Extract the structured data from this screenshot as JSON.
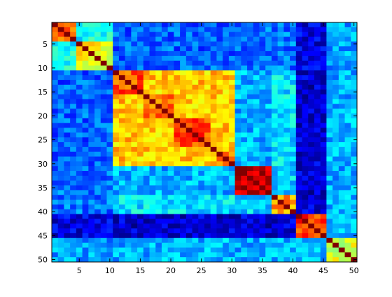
{
  "chart_data": {
    "type": "heatmap",
    "title": "",
    "xlabel": "",
    "ylabel": "",
    "rows": 50,
    "cols": 50,
    "x_ticks": [
      5,
      10,
      15,
      20,
      25,
      30,
      35,
      40,
      45,
      50
    ],
    "y_ticks": [
      5,
      10,
      15,
      20,
      25,
      30,
      35,
      40,
      45,
      50
    ],
    "xlim": [
      0.5,
      50.5
    ],
    "ylim": [
      0.5,
      50.5
    ],
    "y_direction": "reversed",
    "colormap": "jet",
    "color_range": [
      0,
      1
    ],
    "symmetric": true,
    "diagonal": 1.0,
    "block_structure": [
      {
        "range": [
          1,
          4
        ],
        "within": 0.78
      },
      {
        "range": [
          5,
          10
        ],
        "within": 0.62
      },
      {
        "range": [
          11,
          30
        ],
        "within": 0.68
      },
      {
        "range": [
          31,
          36
        ],
        "within": 0.95
      },
      {
        "range": [
          37,
          40
        ],
        "within": 0.72
      },
      {
        "range": [
          41,
          45
        ],
        "within": 0.82
      },
      {
        "range": [
          46,
          50
        ],
        "within": 0.58
      }
    ],
    "sub_blocks": [
      {
        "range": [
          11,
          15
        ],
        "within": 0.8
      },
      {
        "range": [
          16,
          20
        ],
        "within": 0.76
      },
      {
        "range": [
          21,
          26
        ],
        "within": 0.8
      },
      {
        "range": [
          27,
          30
        ],
        "within": 0.72
      }
    ],
    "between_blocks": [
      {
        "a": [
          1,
          4
        ],
        "b": [
          5,
          10
        ],
        "value": 0.38
      },
      {
        "a": [
          1,
          10
        ],
        "b": [
          11,
          30
        ],
        "value": 0.22
      },
      {
        "a": [
          1,
          10
        ],
        "b": [
          31,
          40
        ],
        "value": 0.24
      },
      {
        "a": [
          1,
          10
        ],
        "b": [
          41,
          45
        ],
        "value": 0.1
      },
      {
        "a": [
          1,
          10
        ],
        "b": [
          46,
          50
        ],
        "value": 0.28
      },
      {
        "a": [
          11,
          30
        ],
        "b": [
          31,
          36
        ],
        "value": 0.3
      },
      {
        "a": [
          11,
          30
        ],
        "b": [
          37,
          40
        ],
        "value": 0.35
      },
      {
        "a": [
          11,
          30
        ],
        "b": [
          41,
          45
        ],
        "value": 0.08
      },
      {
        "a": [
          11,
          30
        ],
        "b": [
          46,
          50
        ],
        "value": 0.3
      },
      {
        "a": [
          31,
          36
        ],
        "b": [
          37,
          40
        ],
        "value": 0.34
      },
      {
        "a": [
          31,
          40
        ],
        "b": [
          41,
          45
        ],
        "value": 0.08
      },
      {
        "a": [
          31,
          40
        ],
        "b": [
          46,
          50
        ],
        "value": 0.3
      },
      {
        "a": [
          41,
          45
        ],
        "b": [
          46,
          50
        ],
        "value": 0.3
      }
    ],
    "noise": 0.08,
    "grid": false,
    "legend": "none"
  }
}
